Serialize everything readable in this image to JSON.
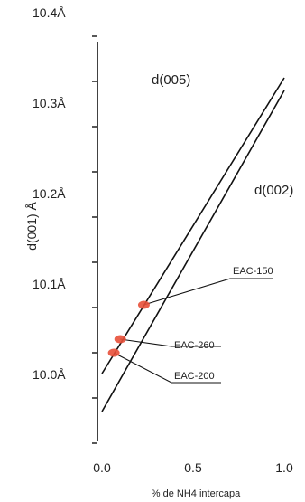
{
  "chart_data": {
    "type": "line",
    "xlabel": "% de NH4 intercapa",
    "ylabel": "d(001) Å",
    "xlim": [
      0,
      1
    ],
    "ylim": [
      9.95,
      10.4
    ],
    "x_ticks": [
      "0.0",
      "0.5",
      "1.0"
    ],
    "y_ticks": [
      {
        "value": 10.4,
        "label": "10.4Å"
      },
      {
        "value": 10.3,
        "label": "10.3Å"
      },
      {
        "value": 10.2,
        "label": "10.2Å"
      },
      {
        "value": 10.1,
        "label": "10.1Å"
      },
      {
        "value": 10.0,
        "label": "10.0Å"
      }
    ],
    "series": [
      {
        "name": "d(005)",
        "x": [
          0,
          1
        ],
        "y": [
          10.027,
          10.354
        ]
      },
      {
        "name": "d(002)",
        "x": [
          0,
          1
        ],
        "y": [
          9.985,
          10.34
        ]
      }
    ],
    "points": [
      {
        "label": "EAC-150",
        "x": 0.23,
        "y": 10.103
      },
      {
        "label": "EAC-260",
        "x": 0.1,
        "y": 10.065
      },
      {
        "label": "EAC-200",
        "x": 0.065,
        "y": 10.05
      }
    ],
    "point_color": "#e8503a",
    "line_color": "#111111",
    "grid": false,
    "legend": "none"
  }
}
